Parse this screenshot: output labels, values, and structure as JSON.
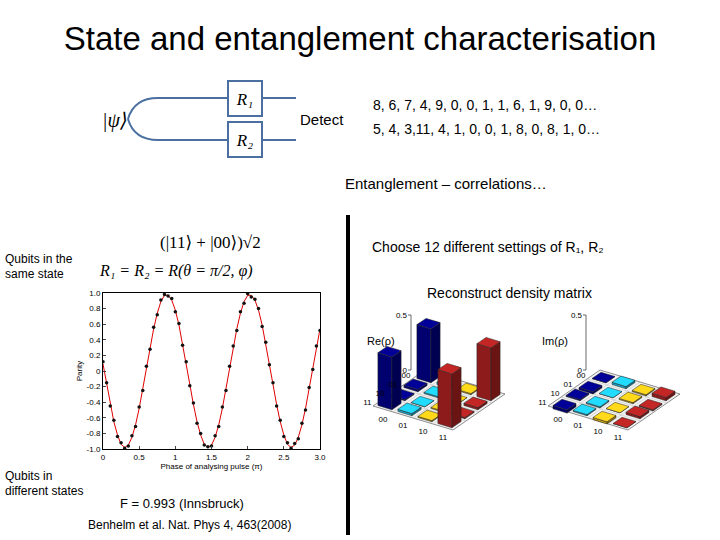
{
  "title": "State and entanglement characterisation",
  "circuit": {
    "input": "|ψ⟩",
    "gates": [
      "R₁",
      "R₂"
    ],
    "detect": "Detect",
    "counts": [
      "8, 6, 7,  4, 9, 0, 0, 1, 1, 6, 1, 9, 0, 0…",
      "5, 4, 3,11, 4, 1, 0, 0, 1, 8, 0, 8, 1, 0…"
    ]
  },
  "caption": "Entanglement – correlations…",
  "state": "(|11⟩ + |00⟩)√2",
  "settings_formula": "R₁ = R₂ = R(θ = π/2, φ)",
  "labels": {
    "same": [
      "Qubits in the",
      "same state"
    ],
    "different": [
      "Qubits in",
      "different states"
    ]
  },
  "tomography": {
    "text": "Choose 12 different settings of R₁, R₂",
    "subtitle": "Reconstruct density matrix",
    "basis": [
      "00",
      "01",
      "10",
      "11"
    ],
    "colors": [
      "#00008b",
      "#1ec8f0",
      "#f5c518",
      "#b22222"
    ],
    "zlim": [
      0,
      0.5
    ],
    "zticks": [
      0,
      0.5
    ],
    "panels": [
      {
        "label": "Re(ρ)",
        "values": [
          [
            0.49,
            0.02,
            0.01,
            0.48
          ],
          [
            0.02,
            0.01,
            0.0,
            0.02
          ],
          [
            0.01,
            0.0,
            0.01,
            0.01
          ],
          [
            0.48,
            0.02,
            0.01,
            0.49
          ]
        ]
      },
      {
        "label": "Im(ρ)",
        "values": [
          [
            0.0,
            0.02,
            -0.01,
            0.03
          ],
          [
            -0.02,
            0.0,
            0.01,
            -0.01
          ],
          [
            0.01,
            -0.01,
            0.0,
            0.02
          ],
          [
            -0.03,
            0.01,
            -0.02,
            0.0
          ]
        ]
      }
    ]
  },
  "fidelity": "F = 0.993 (Innsbruck)",
  "reference": "Benhelm et al. Nat. Phys 4, 463(2008)",
  "chart_data": {
    "type": "scatter",
    "xlabel": "Phase of analysing pulse (π)",
    "ylabel": "Parity",
    "x": [
      0,
      0.05,
      0.1,
      0.15,
      0.2,
      0.25,
      0.3,
      0.35,
      0.4,
      0.45,
      0.5,
      0.55,
      0.6,
      0.65,
      0.7,
      0.75,
      0.8,
      0.85,
      0.9,
      0.95,
      1,
      1.05,
      1.1,
      1.15,
      1.2,
      1.25,
      1.3,
      1.35,
      1.4,
      1.45,
      1.5,
      1.55,
      1.6,
      1.65,
      1.7,
      1.75,
      1.8,
      1.85,
      1.9,
      1.95,
      2,
      2.05,
      2.1,
      2.15,
      2.2,
      2.25,
      2.3,
      2.35,
      2.4,
      2.45,
      2.5,
      2.55,
      2.6,
      2.65,
      2.7,
      2.75,
      2.8,
      2.85,
      2.9,
      2.95,
      3
    ],
    "series": [
      {
        "type": "line",
        "line_style": "solid",
        "color": "#e00000",
        "values": [
          0.09,
          -0.17,
          -0.43,
          -0.65,
          -0.82,
          -0.94,
          -0.98,
          -0.95,
          -0.85,
          -0.69,
          -0.48,
          -0.23,
          0.04,
          0.3,
          0.54,
          0.74,
          0.89,
          0.97,
          0.97,
          0.91,
          0.78,
          0.59,
          0.35,
          0.1,
          -0.17,
          -0.43,
          -0.65,
          -0.82,
          -0.94,
          -0.98,
          -0.95,
          -0.85,
          -0.69,
          -0.48,
          -0.23,
          0.04,
          0.3,
          0.54,
          0.74,
          0.89,
          0.97,
          0.97,
          0.91,
          0.78,
          0.59,
          0.35,
          0.1,
          -0.17,
          -0.43,
          -0.65,
          -0.82,
          -0.94,
          -0.98,
          -0.95,
          -0.85,
          -0.69,
          -0.48,
          -0.23,
          0.04,
          0.3,
          0.54
        ]
      },
      {
        "type": "scatter",
        "marker": "circle",
        "color": "#111111",
        "values": [
          0.12,
          -0.15,
          -0.45,
          -0.63,
          -0.84,
          -0.92,
          -0.99,
          -0.96,
          -0.83,
          -0.71,
          -0.46,
          -0.25,
          0.06,
          0.28,
          0.56,
          0.72,
          0.91,
          0.98,
          0.96,
          0.93,
          0.76,
          0.61,
          0.33,
          0.12,
          -0.19,
          -0.41,
          -0.67,
          -0.8,
          -0.95,
          -0.97,
          -0.96,
          -0.83,
          -0.71,
          -0.46,
          -0.25,
          0.06,
          0.32,
          0.52,
          0.76,
          0.87,
          0.99,
          0.95,
          0.92,
          0.8,
          0.57,
          0.37,
          0.08,
          -0.15,
          -0.45,
          -0.63,
          -0.84,
          -0.92,
          -0.99,
          -0.93,
          -0.87,
          -0.67,
          -0.5,
          -0.21,
          0.02,
          0.32,
          0.52
        ]
      }
    ],
    "xlim": [
      0,
      3
    ],
    "xticks": [
      0,
      0.5,
      1,
      1.5,
      2,
      2.5,
      {
        "value": 3,
        "label": "3.0"
      }
    ],
    "ylim": [
      -1,
      1
    ],
    "yticks": [
      {
        "value": -1,
        "label": "-1.0"
      },
      -0.8,
      -0.6,
      -0.4,
      -0.2,
      0,
      0.2,
      0.4,
      0.6,
      0.8,
      {
        "value": 1,
        "label": "1.0"
      }
    ],
    "grid": false
  }
}
